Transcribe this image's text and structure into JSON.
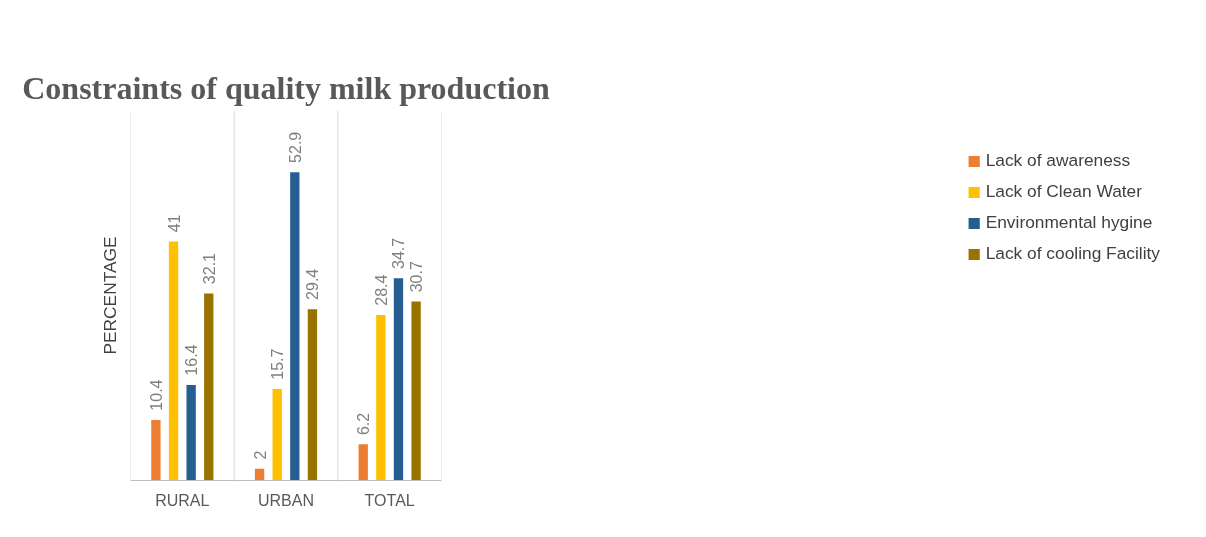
{
  "chart_data": {
    "type": "bar",
    "title": "Constraints of quality milk production",
    "ylabel": "PERCENTAGE",
    "categories": [
      "RURAL",
      "URBAN",
      "TOTAL"
    ],
    "series": [
      {
        "name": "Lack of awareness",
        "color": "#ed7d31",
        "values": [
          10.4,
          2,
          6.2
        ]
      },
      {
        "name": "Lack of Clean Water",
        "color": "#ffc000",
        "values": [
          41,
          15.7,
          28.4
        ]
      },
      {
        "name": "Environmental hygine",
        "color": "#255e91",
        "values": [
          16.4,
          52.9,
          34.7
        ]
      },
      {
        "name": "Lack of cooling Facility",
        "color": "#997300",
        "values": [
          32.1,
          29.4,
          30.7
        ]
      }
    ],
    "data_labels": true,
    "legend": "right",
    "grid": "x"
  }
}
